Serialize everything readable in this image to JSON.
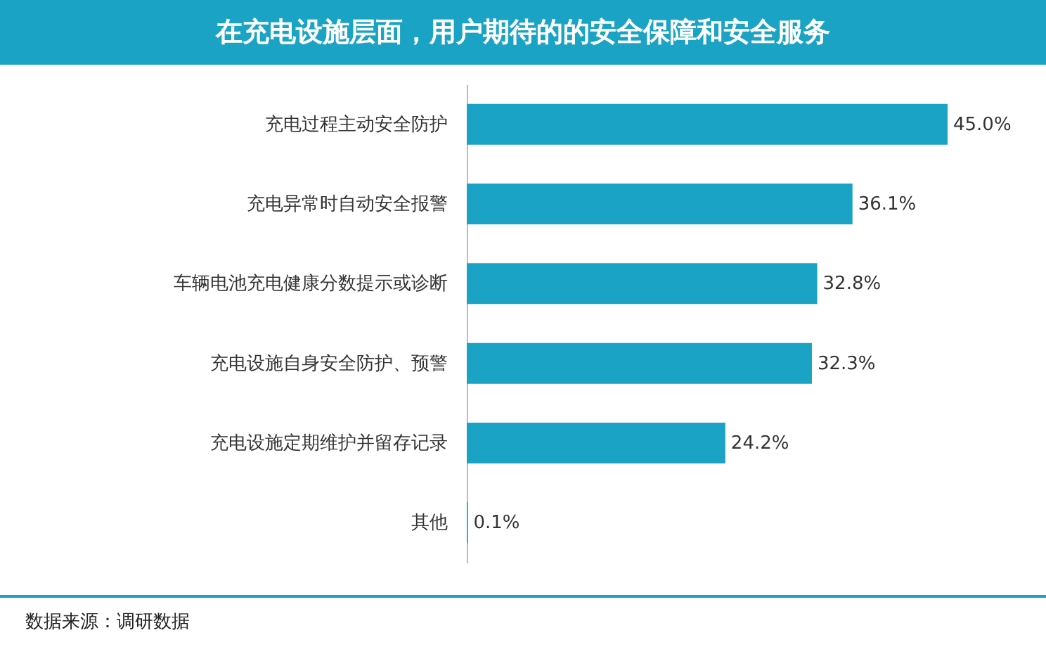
{
  "chart_data": {
    "type": "bar",
    "orientation": "horizontal",
    "title": "在充电设施层面，用户期待的的安全保障和安全服务",
    "categories": [
      "充电过程主动安全防护",
      "充电异常时自动安全报警",
      "车辆电池充电健康分数提示或诊断",
      "充电设施自身安全防护、预警",
      "充电设施定期维护并留存记录",
      "其他"
    ],
    "values": [
      45.0,
      36.1,
      32.8,
      32.3,
      24.2,
      0.1
    ],
    "value_labels": [
      "45.0%",
      "36.1%",
      "32.8%",
      "32.3%",
      "24.2%",
      "0.1%"
    ],
    "color": "#1aa3c4",
    "annotations": [
      "数据来源：调研数据"
    ]
  }
}
